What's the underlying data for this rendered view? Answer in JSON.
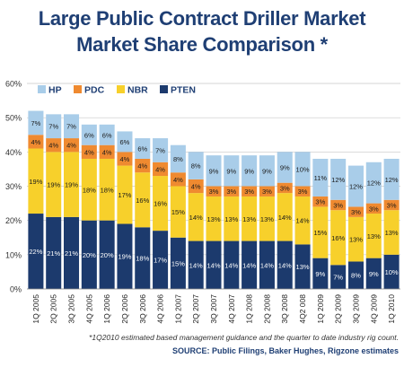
{
  "title_line1": "Large Public Contract Driller Market",
  "title_line2": "Market Share Comparison *",
  "footnote": "*1Q2010 estimated based management guidance and the quarter to date industry rig count.",
  "source": "SOURCE: Public Filings, Baker Hughes, Rigzone estimates",
  "colors": {
    "HP": "#a9cde9",
    "PDC": "#ef8a30",
    "NBR": "#f7d02b",
    "PTEN": "#1c3a6d",
    "title": "#1f3f74"
  },
  "chart_data": {
    "type": "bar",
    "stacked": true,
    "categories": [
      "1Q 2005",
      "2Q 2005",
      "3Q 2005",
      "4Q 2005",
      "1Q 2006",
      "2Q 2006",
      "3Q 2006",
      "4Q 2006",
      "1Q 2007",
      "2Q 2007",
      "3Q 2007",
      "4Q 2007",
      "1Q 2008",
      "2Q 2008",
      "3Q 2008",
      "4Q2 008",
      "1Q 2009",
      "2Q 2009",
      "3Q 2009",
      "4Q 2009",
      "1Q 2010"
    ],
    "ylim": [
      0,
      60
    ],
    "yticks": [
      "0%",
      "10%",
      "20%",
      "30%",
      "40%",
      "50%",
      "60%"
    ],
    "grid": true,
    "legend": "top-left",
    "series": [
      {
        "name": "PTEN",
        "values": [
          22,
          21,
          21,
          20,
          20,
          19,
          18,
          17,
          15,
          14,
          14,
          14,
          14,
          14,
          14,
          13,
          9,
          7,
          8,
          9,
          10
        ],
        "labels": [
          "22%",
          "21%",
          "21%",
          "20%",
          "20%",
          "19%",
          "18%",
          "17%",
          "15%",
          "14%",
          "14%",
          "14%",
          "14%",
          "14%",
          "14%",
          "13%",
          "9%",
          "7%",
          "8%",
          "9%",
          "10%"
        ]
      },
      {
        "name": "NBR",
        "values": [
          19,
          19,
          19,
          18,
          18,
          17,
          16,
          16,
          15,
          14,
          13,
          13,
          13,
          13,
          14,
          14,
          15,
          16,
          13,
          13,
          13
        ],
        "labels": [
          "19%",
          "19%",
          "19%",
          "18%",
          "18%",
          "17%",
          "16%",
          "16%",
          "15%",
          "14%",
          "13%",
          "13%",
          "13%",
          "13%",
          "14%",
          "14%",
          "15%",
          "16%",
          "13%",
          "13%",
          "13%"
        ]
      },
      {
        "name": "PDC",
        "values": [
          4,
          4,
          4,
          4,
          4,
          4,
          4,
          4,
          4,
          4,
          3,
          3,
          3,
          3,
          3,
          3,
          3,
          3,
          3,
          3,
          3
        ],
        "labels": [
          "4%",
          "4%",
          "4%",
          "4%",
          "4%",
          "4%",
          "4%",
          "4%",
          "4%",
          "4%",
          "3%",
          "3%",
          "3%",
          "3%",
          "3%",
          "3%",
          "3%",
          "3%",
          "3%",
          "3%",
          "3%"
        ]
      },
      {
        "name": "HP",
        "values": [
          7,
          7,
          7,
          6,
          6,
          6,
          6,
          7,
          8,
          8,
          9,
          9,
          9,
          9,
          9,
          10,
          11,
          12,
          12,
          12,
          12
        ],
        "labels": [
          "7%",
          "7%",
          "7%",
          "6%",
          "6%",
          "6%",
          "6%",
          "7%",
          "8%",
          "8%",
          "9%",
          "9%",
          "9%",
          "9%",
          "9%",
          "10%",
          "11%",
          "12%",
          "12%",
          "12%",
          "12%"
        ]
      }
    ],
    "legend_order": [
      "HP",
      "PDC",
      "NBR",
      "PTEN"
    ]
  }
}
